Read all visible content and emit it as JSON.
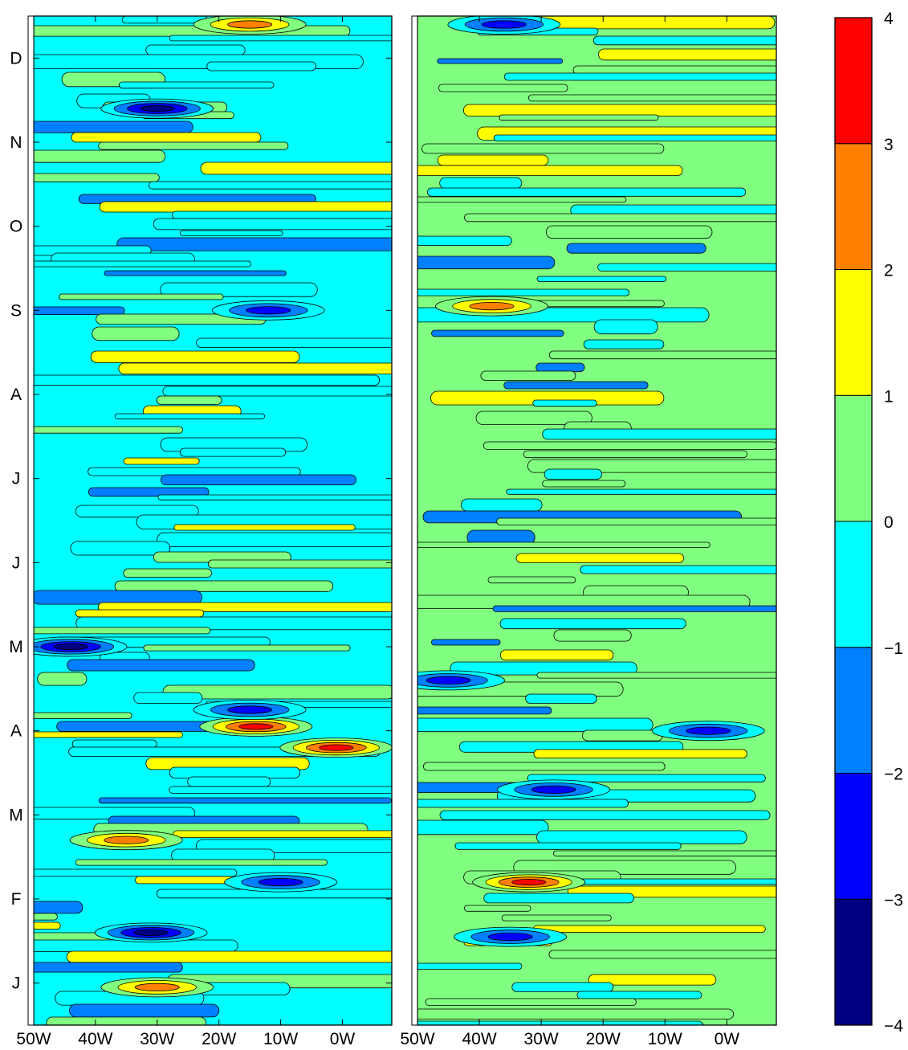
{
  "chart_data": {
    "type": "heatmap",
    "description_of_axes": {
      "x_ticks": [
        "50W",
        "40W",
        "30W",
        "20W",
        "10W",
        "0W"
      ],
      "y_ticks": [
        "J",
        "F",
        "M",
        "A",
        "M",
        "J",
        "J",
        "A",
        "S",
        "O",
        "N",
        "D"
      ]
    },
    "panels": [
      {
        "name": "left",
        "x_range_deg_lon": [
          -50,
          8
        ],
        "y_range_months": [
          0,
          12
        ],
        "features": [
          {
            "lon": -14,
            "month": 3.55,
            "value": 3.4
          },
          {
            "lon": -1,
            "month": 3.3,
            "value": 3.1
          },
          {
            "lon": -30,
            "month": 10.9,
            "value": -3.3
          },
          {
            "lon": -44,
            "month": 4.5,
            "value": -3.2
          },
          {
            "lon": -31,
            "month": 1.1,
            "value": -3.1
          },
          {
            "lon": -15,
            "month": 3.75,
            "value": -2.6
          },
          {
            "lon": -15,
            "month": 11.9,
            "value": 2.3
          },
          {
            "lon": -30,
            "month": 0.45,
            "value": 2.2
          },
          {
            "lon": -12,
            "month": 8.5,
            "value": -2.3
          },
          {
            "lon": -35,
            "month": 2.2,
            "value": 2.1
          },
          {
            "lon": -10,
            "month": 1.7,
            "value": -2.4
          }
        ]
      },
      {
        "name": "right",
        "x_range_deg_lon": [
          -50,
          8
        ],
        "y_range_months": [
          0,
          12
        ],
        "features": [
          {
            "lon": -32,
            "month": 1.7,
            "value": 3.4
          },
          {
            "lon": -35,
            "month": 1.05,
            "value": -2.6
          },
          {
            "lon": -36,
            "month": 11.9,
            "value": -2.5
          },
          {
            "lon": -38,
            "month": 8.55,
            "value": 2.3
          },
          {
            "lon": -45,
            "month": 4.1,
            "value": -2.2
          },
          {
            "lon": -28,
            "month": 2.8,
            "value": -2.1
          },
          {
            "lon": -3,
            "month": 3.5,
            "value": -2.4
          }
        ]
      }
    ],
    "colorbar": {
      "levels": [
        -4,
        -3,
        -2,
        -1,
        0,
        1,
        2,
        3,
        4
      ],
      "tick_labels": [
        "4",
        "3",
        "2",
        "1",
        "0",
        "−1",
        "−2",
        "−3",
        "−4"
      ],
      "colors": [
        "#000080",
        "#0000ff",
        "#0080ff",
        "#00ffff",
        "#80ff80",
        "#ffff00",
        "#ff8000",
        "#ff0000"
      ]
    },
    "xlim": [
      -50,
      8
    ],
    "ylim": [
      0,
      12
    ],
    "grid": false,
    "legend": "colorbar on the right"
  }
}
